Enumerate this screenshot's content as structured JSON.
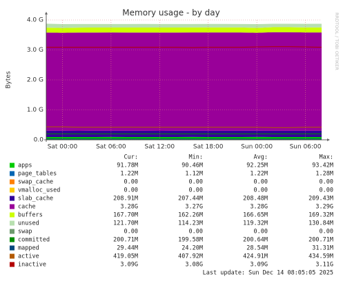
{
  "chart_data": {
    "type": "area",
    "stacked": true,
    "title": "Memory usage - by day",
    "y_label": "Bytes",
    "side_text": "RRDTOOL / TOBI OETIKER",
    "categories": [
      null,
      "Sat 00:00",
      null,
      null,
      "Sat 06:00",
      null,
      null,
      "Sat 12:00",
      null,
      null,
      "Sat 18:00",
      null,
      null,
      "Sun 00:00",
      null,
      null,
      "Sun 06:00",
      null
    ],
    "ylim": [
      0,
      4.0
    ],
    "yticks": [
      {
        "value": 0,
        "label": "0.0"
      },
      {
        "value": 1,
        "label": "1.0 G"
      },
      {
        "value": 2,
        "label": "2.0 G"
      },
      {
        "value": 3,
        "label": "3.0 G"
      },
      {
        "value": 4,
        "label": "4.0 G"
      }
    ],
    "grid": true,
    "stats_headers": [
      "Cur:",
      "Min:",
      "Avg:",
      "Max:"
    ],
    "series": [
      {
        "name": "apps",
        "kind": "area",
        "color": "#00cc00",
        "stats": [
          "91.78M",
          "90.46M",
          "92.25M",
          "93.42M"
        ],
        "values": [
          0.092,
          0.092,
          0.091,
          0.092,
          0.093,
          0.092,
          0.092,
          0.091,
          0.092,
          0.093,
          0.092,
          0.092,
          0.092,
          0.093,
          0.092,
          0.091,
          0.092,
          0.092
        ]
      },
      {
        "name": "page_tables",
        "kind": "area",
        "color": "#0066b3",
        "stats": [
          "1.22M",
          "1.12M",
          "1.22M",
          "1.28M"
        ],
        "values": [
          0.0012,
          0.0012,
          0.0012,
          0.0012,
          0.0012,
          0.0012,
          0.0012,
          0.0012,
          0.0012,
          0.0012,
          0.0012,
          0.0012,
          0.0012,
          0.0012,
          0.0012,
          0.0012,
          0.0012,
          0.0012
        ]
      },
      {
        "name": "swap_cache",
        "kind": "area",
        "color": "#ff8000",
        "stats": [
          "0.00",
          "0.00",
          "0.00",
          "0.00"
        ],
        "values": [
          0,
          0,
          0,
          0,
          0,
          0,
          0,
          0,
          0,
          0,
          0,
          0,
          0,
          0,
          0,
          0,
          0,
          0
        ]
      },
      {
        "name": "vmalloc_used",
        "kind": "area",
        "color": "#ffcc00",
        "stats": [
          "0.00",
          "0.00",
          "0.00",
          "0.00"
        ],
        "values": [
          0,
          0,
          0,
          0,
          0,
          0,
          0,
          0,
          0,
          0,
          0,
          0,
          0,
          0,
          0,
          0,
          0,
          0
        ]
      },
      {
        "name": "slab_cache",
        "kind": "area",
        "color": "#330099",
        "stats": [
          "208.91M",
          "207.44M",
          "208.48M",
          "209.43M"
        ],
        "values": [
          0.208,
          0.208,
          0.208,
          0.208,
          0.208,
          0.208,
          0.208,
          0.208,
          0.208,
          0.208,
          0.209,
          0.209,
          0.209,
          0.209,
          0.209,
          0.209,
          0.209,
          0.209
        ]
      },
      {
        "name": "cache",
        "kind": "area",
        "color": "#990099",
        "stats": [
          "3.28G",
          "3.27G",
          "3.28G",
          "3.29G"
        ],
        "values": [
          3.28,
          3.27,
          3.28,
          3.28,
          3.28,
          3.28,
          3.28,
          3.28,
          3.28,
          3.28,
          3.28,
          3.28,
          3.28,
          3.27,
          3.29,
          3.29,
          3.28,
          3.28
        ]
      },
      {
        "name": "buffers",
        "kind": "area",
        "color": "#ccff00",
        "stats": [
          "167.70M",
          "162.26M",
          "166.65M",
          "169.32M"
        ],
        "values": [
          0.163,
          0.162,
          0.165,
          0.166,
          0.166,
          0.167,
          0.167,
          0.167,
          0.167,
          0.168,
          0.168,
          0.168,
          0.168,
          0.163,
          0.166,
          0.168,
          0.168,
          0.168
        ]
      },
      {
        "name": "unused",
        "kind": "area",
        "color": "#b8e0b0",
        "stats": [
          "121.70M",
          "114.23M",
          "119.32M",
          "130.84M"
        ],
        "values": [
          0.131,
          0.128,
          0.12,
          0.118,
          0.117,
          0.118,
          0.119,
          0.118,
          0.117,
          0.116,
          0.118,
          0.117,
          0.116,
          0.125,
          0.114,
          0.115,
          0.12,
          0.122
        ]
      },
      {
        "name": "swap",
        "kind": "line",
        "color": "#6e9b6e",
        "stats": [
          "0.00",
          "0.00",
          "0.00",
          "0.00"
        ],
        "values": [
          0,
          0,
          0,
          0,
          0,
          0,
          0,
          0,
          0,
          0,
          0,
          0,
          0,
          0,
          0,
          0,
          0,
          0
        ]
      },
      {
        "name": "committed",
        "kind": "line",
        "color": "#008f00",
        "stats": [
          "200.71M",
          "199.58M",
          "200.64M",
          "200.71M"
        ],
        "values": [
          0.2,
          0.2,
          0.2,
          0.2,
          0.2,
          0.2,
          0.2,
          0.2,
          0.2,
          0.2,
          0.2,
          0.2,
          0.2,
          0.2,
          0.2,
          0.2,
          0.2,
          0.2
        ]
      },
      {
        "name": "mapped",
        "kind": "line",
        "color": "#00487d",
        "stats": [
          "29.44M",
          "24.20M",
          "28.54M",
          "31.31M"
        ],
        "values": [
          0.031,
          0.03,
          0.029,
          0.029,
          0.028,
          0.028,
          0.029,
          0.028,
          0.028,
          0.029,
          0.028,
          0.028,
          0.028,
          0.024,
          0.027,
          0.028,
          0.029,
          0.029
        ]
      },
      {
        "name": "active",
        "kind": "line",
        "color": "#b35a00",
        "stats": [
          "419.05M",
          "407.92M",
          "424.91M",
          "434.59M"
        ],
        "values": [
          0.434,
          0.433,
          0.42,
          0.42,
          0.42,
          0.421,
          0.42,
          0.42,
          0.42,
          0.42,
          0.42,
          0.42,
          0.42,
          0.42,
          0.408,
          0.408,
          0.419,
          0.419
        ]
      },
      {
        "name": "inactive",
        "kind": "line",
        "color": "#b30000",
        "stats": [
          "3.09G",
          "3.08G",
          "3.09G",
          "3.11G"
        ],
        "values": [
          3.09,
          3.09,
          3.09,
          3.09,
          3.09,
          3.09,
          3.09,
          3.09,
          3.09,
          3.08,
          3.09,
          3.09,
          3.09,
          3.1,
          3.11,
          3.11,
          3.1,
          3.09
        ]
      }
    ],
    "footer": "Last update: Sun Dec 14 08:05:05 2025"
  }
}
